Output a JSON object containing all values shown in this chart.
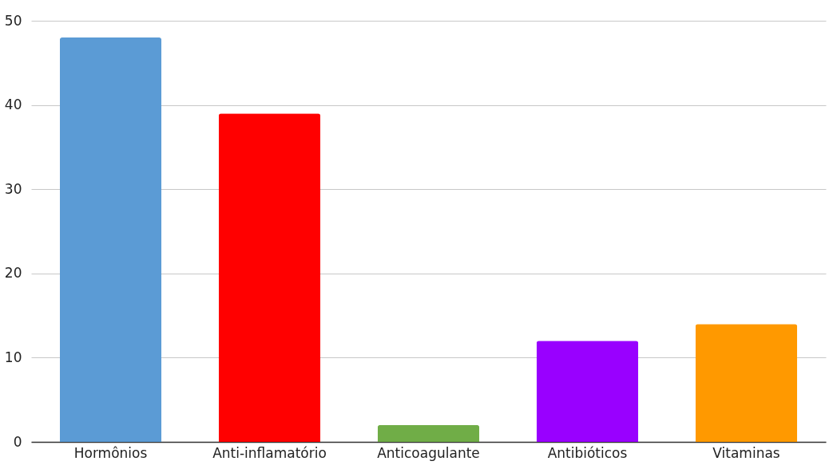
{
  "chart_data": {
    "type": "bar",
    "categories": [
      "Hormônios",
      "Anti-inflamatório",
      "Anticoagulante",
      "Antibióticos",
      "Vitaminas"
    ],
    "values": [
      48,
      39,
      2,
      12,
      14
    ],
    "colors": [
      "#5b9bd5",
      "#ff0000",
      "#70ad47",
      "#9900ff",
      "#ff9900"
    ],
    "ylim": [
      0,
      50
    ],
    "yticks": [
      0,
      10,
      20,
      30,
      40,
      50
    ],
    "grid": "y"
  }
}
